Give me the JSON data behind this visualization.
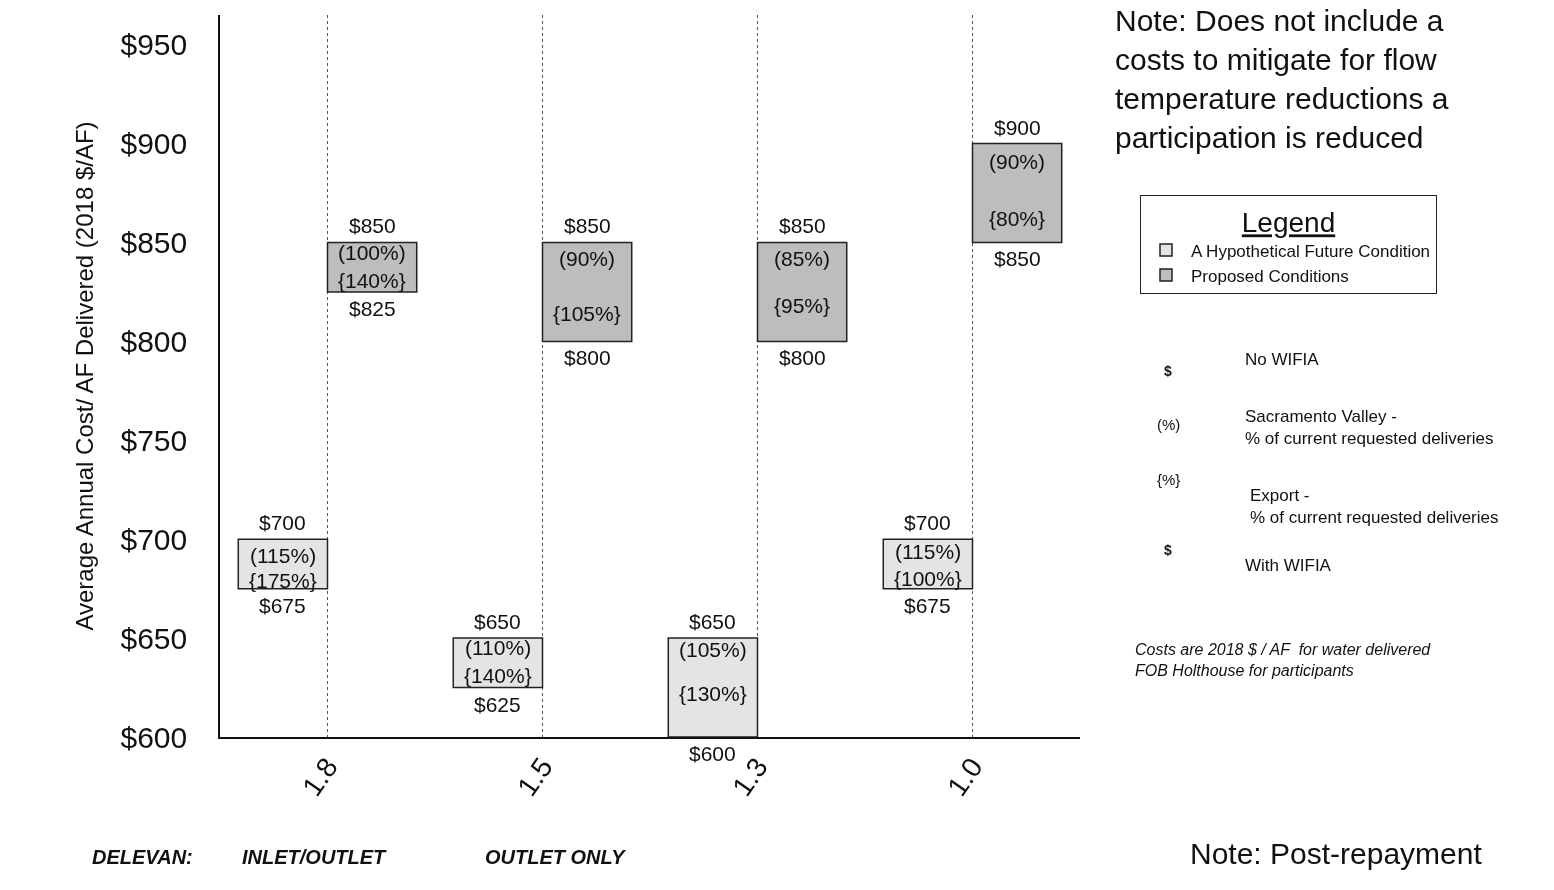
{
  "chart_data": {
    "type": "bar",
    "ylabel": "Average Annual Cost/ AF Delivered (2018 $/AF)",
    "legend_title": "Legend",
    "categories": [
      "1.8",
      "1.5",
      "1.3",
      "1.0"
    ],
    "series": [
      {
        "name": "A Hypothetical Future Condition",
        "color": "#e4e4e4",
        "base": [
          675,
          625,
          600,
          675
        ],
        "values": [
          25,
          25,
          50,
          25
        ]
      },
      {
        "name": "Proposed Conditions",
        "color": "#bdbdbd",
        "base": [
          825,
          800,
          800,
          850
        ],
        "values": [
          25,
          50,
          50,
          50
        ]
      }
    ],
    "ylim": [
      600,
      965
    ],
    "yticks": [
      {
        "value": 600,
        "label": "$600"
      },
      {
        "value": 650,
        "label": "$650"
      },
      {
        "value": 700,
        "label": "$700"
      },
      {
        "value": 750,
        "label": "$750"
      },
      {
        "value": 800,
        "label": "$800"
      },
      {
        "value": 850,
        "label": "$850"
      },
      {
        "value": 900,
        "label": "$900"
      },
      {
        "value": 950,
        "label": "$950"
      }
    ],
    "grid": "x",
    "legend": "right",
    "annotations": [
      {
        "text": "$700",
        "x": "1.8",
        "y": 700
      },
      {
        "text": "(115%)",
        "x": "1.8",
        "y": 692
      },
      {
        "text": "{175%}",
        "x": "1.8",
        "y": 679
      },
      {
        "text": "$675",
        "x": "1.8",
        "y": 675
      },
      {
        "text": "$850",
        "x": "1.8",
        "y": 850
      },
      {
        "text": "(100%)",
        "x": "1.8",
        "y": 845
      },
      {
        "text": "{140%}",
        "x": "1.8",
        "y": 831
      },
      {
        "text": "$825",
        "x": "1.8",
        "y": 825
      },
      {
        "text": "$650",
        "x": "1.5",
        "y": 650
      },
      {
        "text": "(110%)",
        "x": "1.5",
        "y": 645
      },
      {
        "text": "{140%}",
        "x": "1.5",
        "y": 631
      },
      {
        "text": "$625",
        "x": "1.5",
        "y": 625
      },
      {
        "text": "$850",
        "x": "1.5",
        "y": 850
      },
      {
        "text": "(90%)",
        "x": "1.5",
        "y": 842
      },
      {
        "text": "{105%}",
        "x": "1.5",
        "y": 814
      },
      {
        "text": "$800",
        "x": "1.5",
        "y": 800
      },
      {
        "text": "$650",
        "x": "1.3",
        "y": 650
      },
      {
        "text": "(105%)",
        "x": "1.3",
        "y": 644
      },
      {
        "text": "{130%}",
        "x": "1.3",
        "y": 622
      },
      {
        "text": "$600",
        "x": "1.3",
        "y": 600
      },
      {
        "text": "$850",
        "x": "1.3",
        "y": 850
      },
      {
        "text": "(85%)",
        "x": "1.3",
        "y": 842
      },
      {
        "text": "{95%}",
        "x": "1.3",
        "y": 818
      },
      {
        "text": "$800",
        "x": "1.3",
        "y": 800
      },
      {
        "text": "$700",
        "x": "1.0",
        "y": 700
      },
      {
        "text": "(115%)",
        "x": "1.0",
        "y": 694
      },
      {
        "text": "{100%}",
        "x": "1.0",
        "y": 680
      },
      {
        "text": "$675",
        "x": "1.0",
        "y": 675
      },
      {
        "text": "$900",
        "x": "1.0",
        "y": 900
      },
      {
        "text": "(90%)",
        "x": "1.0",
        "y": 891
      },
      {
        "text": "{80%}",
        "x": "1.0",
        "y": 862
      },
      {
        "text": "$850",
        "x": "1.0",
        "y": 850
      },
      "Note: Does not include a\ncosts to mitigate for flow\ntemperature reductions a\nparticipation is reduced",
      "Note: Post-repayment",
      "DELEVAN:",
      "INLET/OUTLET",
      "OUTLET ONLY",
      "$",
      "(%)",
      "{%}",
      "$",
      "No WIFIA",
      "Sacramento Valley -\n% of current requested deliveries",
      "Export -\n% of current requested deliveries",
      "With WIFIA",
      "Costs are 2018 $ / AF  for water delivered\nFOB Holthouse for participants"
    ]
  }
}
